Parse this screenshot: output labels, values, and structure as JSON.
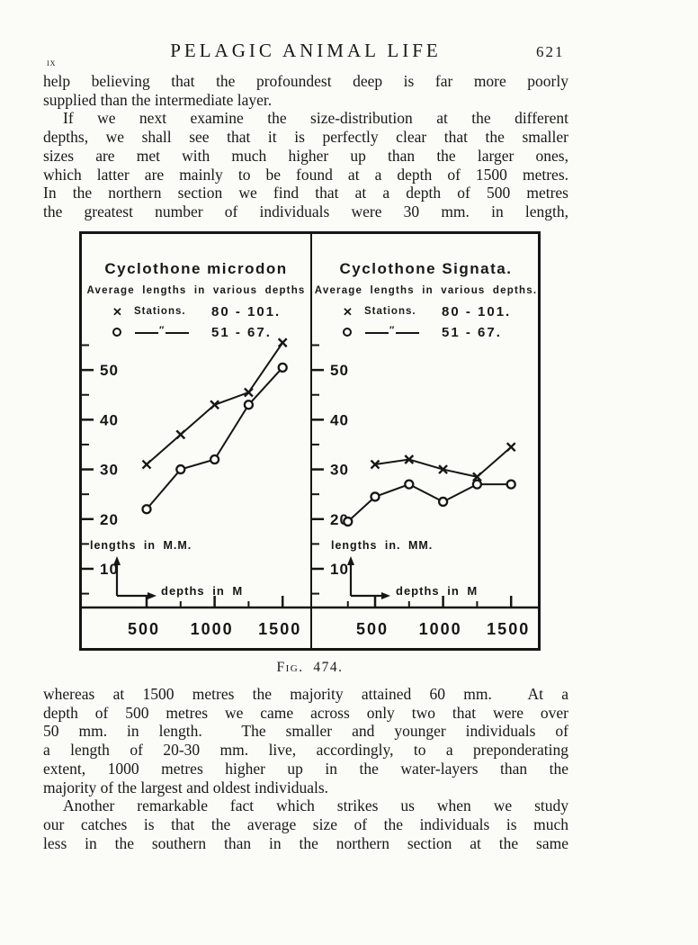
{
  "header": {
    "chapter": "ix",
    "title": "PELAGIC ANIMAL LIFE",
    "page_number": "621"
  },
  "body": {
    "upper": [
      "help believing that the profoundest deep is far more poorly",
      "supplied than the intermediate layer.",
      "If we next examine the size-distribution at the different",
      "depths, we shall see that it is perfectly clear that the smaller",
      "sizes are met with much higher up than the larger ones,",
      "which latter are mainly to be found at a depth of 1500 metres.",
      "In the northern section we find that at a depth of 500 metres",
      "the greatest number of individuals were 30 mm. in length,"
    ],
    "lower": [
      "whereas at 1500 metres the majority attained 60 mm.  At a",
      "depth of 500 metres we came across only two that were over",
      "50 mm. in length.  The smaller and younger individuals of",
      "a length of 20-30 mm. live, accordingly, to a preponderating",
      "extent, 1000 metres higher up in the water-layers than the",
      "majority of the largest and oldest individuals.",
      "Another remarkable fact which strikes us when we study",
      "our catches is that the average size of the individuals is much",
      "less in the southern than in the northern section at the same"
    ]
  },
  "figure": {
    "caption": "Fig.  474."
  },
  "chart_data": [
    {
      "type": "line",
      "title": "Cyclothone microdon",
      "subtitle": "Average lengths in various depths",
      "xlabel": "depths in M",
      "ylabel": "lengths in M.M.",
      "legend": [
        {
          "marker": "x",
          "label": "Stations.",
          "range": "80 - 101."
        },
        {
          "marker": "o",
          "label": "″",
          "range": "51 - 67."
        }
      ],
      "xlim": [
        0,
        1700
      ],
      "ylim": [
        0,
        60
      ],
      "x_ticks_major": [
        500,
        1000,
        1500
      ],
      "x_ticks_minor": [
        750,
        1250
      ],
      "y_ticks_major": [
        10,
        20,
        30,
        40,
        50
      ],
      "y_ticks_minor": [
        5,
        15,
        25,
        35,
        45,
        55
      ],
      "series": [
        {
          "name": "Stations 80 - 101",
          "marker": "x",
          "x": [
            500,
            750,
            1000,
            1250,
            1500
          ],
          "y": [
            31,
            37,
            43,
            45.5,
            55.5
          ]
        },
        {
          "name": "Stations 51 - 67",
          "marker": "o",
          "x": [
            500,
            750,
            1000,
            1250,
            1500
          ],
          "y": [
            22,
            30,
            32,
            43,
            50.5
          ]
        }
      ]
    },
    {
      "type": "line",
      "title": "Cyclothone Signata.",
      "subtitle": "Average lengths in various depths.",
      "xlabel": "depths in M",
      "ylabel": "lengths in. MM.",
      "legend": [
        {
          "marker": "x",
          "label": "Stations.",
          "range": "80 - 101."
        },
        {
          "marker": "o",
          "label": "″",
          "range": "51 - 67."
        }
      ],
      "xlim": [
        0,
        1700
      ],
      "ylim": [
        0,
        60
      ],
      "x_ticks_major": [
        500,
        1000,
        1500
      ],
      "x_ticks_minor": [
        300,
        750,
        1250
      ],
      "y_ticks_major": [
        10,
        20,
        30,
        40,
        50
      ],
      "y_ticks_minor": [
        5,
        15,
        25,
        35,
        45,
        55
      ],
      "series": [
        {
          "name": "Stations 80 - 101",
          "marker": "x",
          "x": [
            500,
            750,
            1000,
            1250,
            1500
          ],
          "y": [
            31,
            32,
            30,
            28.5,
            34.5
          ]
        },
        {
          "name": "Stations 51 - 67",
          "marker": "o",
          "x": [
            300,
            500,
            750,
            1000,
            1250,
            1500
          ],
          "y": [
            19.5,
            24.5,
            27,
            23.5,
            27,
            27
          ]
        }
      ]
    }
  ]
}
